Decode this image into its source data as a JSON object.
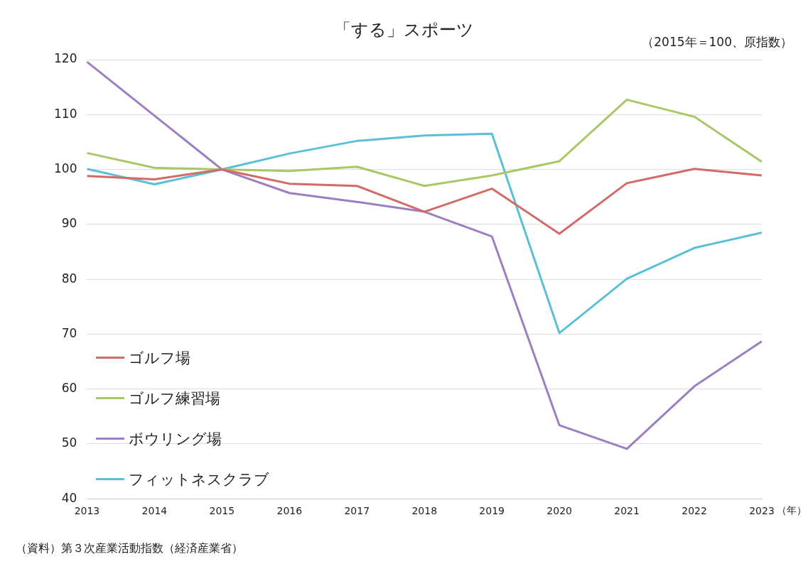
{
  "chart_data": {
    "type": "line",
    "title": "「する」スポーツ",
    "subtitle": "（2015年＝100、原指数）",
    "xlabel": "（年）",
    "annotations": [
      "（資料）第３次産業活動指数（経済産業省）"
    ],
    "categories": [
      "2013",
      "2014",
      "2015",
      "2016",
      "2017",
      "2018",
      "2019",
      "2020",
      "2021",
      "2022",
      "2023"
    ],
    "series": [
      {
        "name": "ゴルフ場",
        "color": "#d26b68",
        "values": [
          98.8,
          98.2,
          100,
          97.4,
          97.0,
          92.3,
          96.5,
          88.3,
          97.5,
          100.1,
          98.9
        ]
      },
      {
        "name": "ゴルフ練習場",
        "color": "#a8c868",
        "values": [
          103.0,
          100.3,
          100,
          99.7,
          100.5,
          97.0,
          98.9,
          101.5,
          112.7,
          109.6,
          101.4
        ]
      },
      {
        "name": "ボウリング場",
        "color": "#9b7fc0",
        "values": [
          119.6,
          109.8,
          100,
          95.7,
          94.1,
          92.3,
          87.8,
          53.4,
          49.1,
          60.5,
          68.7
        ]
      },
      {
        "name": "フィットネスクラブ",
        "color": "#5bbfd6",
        "values": [
          100.1,
          97.3,
          100,
          102.9,
          105.2,
          106.2,
          106.5,
          70.2,
          80.1,
          85.7,
          88.5
        ]
      }
    ],
    "ylim": [
      40,
      120
    ],
    "yticks": [
      40,
      50,
      60,
      70,
      80,
      90,
      100,
      110,
      120
    ],
    "grid": "y",
    "legend": "bottom left",
    "marker": "none",
    "line_style": "solid"
  }
}
